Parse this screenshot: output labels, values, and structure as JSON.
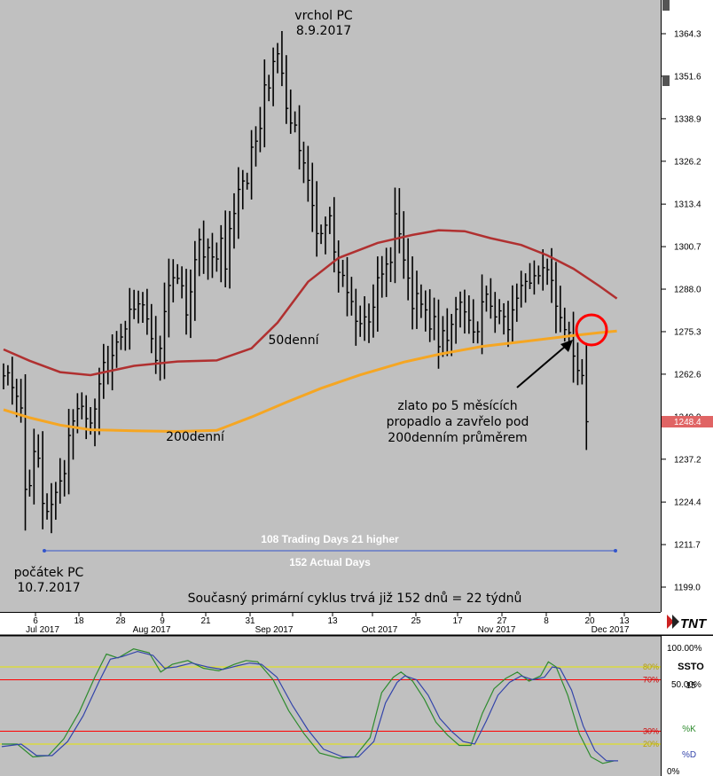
{
  "chart_data": [
    {
      "type": "bar",
      "subtype": "ohlc-price-chart",
      "y_axis_ticks": [
        1199.0,
        1211.7,
        1224.4,
        1237.2,
        1249.9,
        1262.6,
        1275.3,
        1288.0,
        1300.7,
        1313.4,
        1326.2,
        1338.9,
        1351.6,
        1364.3
      ],
      "ylim": [
        1195.0,
        1373.0
      ],
      "last_price": "1248.4",
      "last_price_color": "#e06464",
      "x_day_ticks": [
        "6",
        "18",
        "28",
        "9",
        "21",
        "31",
        "13",
        "25",
        "17",
        "27",
        "8",
        "20",
        "13"
      ],
      "x_month_labels": [
        "Jul 2017",
        "Aug 2017",
        "Sep 2017",
        "Oct 2017",
        "Nov 2017",
        "Dec 2017"
      ],
      "annotations": {
        "peak": [
          "vrchol PC",
          "8.9.2017"
        ],
        "start": [
          "počátek PC",
          "10.7.2017"
        ],
        "ma50_label": "50denní",
        "ma200_label": "200denní",
        "arrow_note": [
          "zlato po 5 měsících",
          "propadlo a zavřelo pod",
          "200denním průměrem"
        ],
        "trading_days": "108 Trading Days 21 higher",
        "actual_days": "152 Actual Days",
        "cycle_note": "Současný primární cyklus trvá již 152 dnů = 22 týdnů"
      },
      "bars_close": [
        1262.1,
        1263.0,
        1258.6,
        1256.0,
        1252.5,
        1228.2,
        1229.3,
        1239.5,
        1237.5,
        1224.0,
        1221.6,
        1223.7,
        1227.3,
        1230.7,
        1232.9,
        1244.3,
        1248.6,
        1252.3,
        1253.0,
        1249.3,
        1248.0,
        1252.2,
        1259.7,
        1266.1,
        1263.6,
        1268.2,
        1272.2,
        1273.7,
        1276.1,
        1282.0,
        1282.0,
        1283.6,
        1283.3,
        1279.1,
        1273.2,
        1266.7,
        1270.3,
        1281.3,
        1289.1,
        1291.4,
        1291.2,
        1289.0,
        1280.3,
        1287.2,
        1296.8,
        1302.8,
        1297.6,
        1300.4,
        1297.6,
        1297.0,
        1303.2,
        1294.0,
        1306.1,
        1310.6,
        1317.8,
        1320.3,
        1319.6,
        1330.4,
        1332.2,
        1336.0,
        1349.0,
        1348.1,
        1356.0,
        1358.3,
        1352.5,
        1342.0,
        1337.6,
        1337.0,
        1329.4,
        1325.7,
        1320.5,
        1313.0,
        1304.6,
        1304.6,
        1307.1,
        1309.9,
        1299.1,
        1293.0,
        1292.1,
        1287.0,
        1284.3,
        1278.4,
        1277.7,
        1279.7,
        1278.2,
        1282.6,
        1291.4,
        1292.5,
        1295.5,
        1296.0,
        1310.5,
        1304.5,
        1296.7,
        1291.3,
        1282.2,
        1286.7,
        1283.5,
        1281.8,
        1276.1,
        1279.8,
        1270.8,
        1275.6,
        1272.7,
        1277.5,
        1282.0,
        1284.1,
        1281.2,
        1278.7,
        1275.2,
        1275.3,
        1284.2,
        1286.5,
        1282.9,
        1279.7,
        1281.5,
        1279.8,
        1275.9,
        1281.8,
        1285.3,
        1289.1,
        1290.3,
        1289.8,
        1292.0,
        1292.0,
        1294.4,
        1293.8,
        1290.6,
        1282.9,
        1279.5,
        1275.9,
        1275.0,
        1268.0,
        1263.7,
        1262.2,
        1248.4
      ],
      "ma50_points": [
        [
          0,
          1270.0
        ],
        [
          6,
          1266.6
        ],
        [
          13,
          1263.2
        ],
        [
          20,
          1262.3
        ],
        [
          30,
          1265.1
        ],
        [
          40,
          1266.4
        ],
        [
          49,
          1266.7
        ],
        [
          57,
          1270.3
        ],
        [
          63,
          1278.0
        ],
        [
          70,
          1290.2
        ],
        [
          77,
          1297.3
        ],
        [
          86,
          1301.8
        ],
        [
          94,
          1304.2
        ],
        [
          100,
          1305.6
        ],
        [
          106,
          1305.3
        ],
        [
          112,
          1303.2
        ],
        [
          119,
          1301.2
        ],
        [
          125,
          1298.1
        ],
        [
          131,
          1294.1
        ],
        [
          137,
          1288.9
        ],
        [
          141,
          1285.2
        ]
      ],
      "ma200_points": [
        [
          0,
          1252.0
        ],
        [
          6,
          1249.6
        ],
        [
          13,
          1247.4
        ],
        [
          20,
          1246.0
        ],
        [
          30,
          1245.7
        ],
        [
          40,
          1245.5
        ],
        [
          49,
          1245.8
        ],
        [
          57,
          1249.8
        ],
        [
          65,
          1254.2
        ],
        [
          73,
          1258.4
        ],
        [
          82,
          1262.4
        ],
        [
          92,
          1266.2
        ],
        [
          100,
          1268.5
        ],
        [
          110,
          1270.9
        ],
        [
          120,
          1272.4
        ],
        [
          130,
          1274.0
        ],
        [
          137,
          1275.0
        ],
        [
          141,
          1275.5
        ]
      ],
      "colors": {
        "ma50": "#b03030",
        "ma200": "#f5a623",
        "bars": "#000000",
        "background": "#c0c0c0",
        "highlight_circle": "#ff0000",
        "range_line": "#3355cc"
      }
    },
    {
      "type": "line",
      "subtype": "stochastic-oscillator",
      "title": "SSTO",
      "parameter": "15",
      "series": [
        {
          "name": "%K",
          "color": "#2e8b2e"
        },
        {
          "name": "%D",
          "color": "#3344aa"
        }
      ],
      "levels": [
        {
          "label": "80%",
          "value": 80,
          "color": "#e6e600"
        },
        {
          "label": "70%",
          "value": 70,
          "color": "#ff0000"
        },
        {
          "label": "30%",
          "value": 30,
          "color": "#ff0000"
        },
        {
          "label": "20%",
          "value": 20,
          "color": "#e6e600"
        }
      ],
      "y_axis_labels": [
        "100.00%",
        "50.00%",
        "0%"
      ],
      "ylim": [
        0,
        100
      ],
      "k_points": [
        [
          0,
          20
        ],
        [
          4,
          20
        ],
        [
          8,
          10
        ],
        [
          12,
          11
        ],
        [
          16,
          24
        ],
        [
          20,
          45
        ],
        [
          24,
          72
        ],
        [
          27,
          90
        ],
        [
          30,
          87
        ],
        [
          34,
          94
        ],
        [
          38,
          91
        ],
        [
          41,
          76
        ],
        [
          44,
          82
        ],
        [
          48,
          85
        ],
        [
          52,
          79
        ],
        [
          56,
          77
        ],
        [
          60,
          82
        ],
        [
          63,
          85
        ],
        [
          66,
          84
        ],
        [
          70,
          70
        ],
        [
          74,
          46
        ],
        [
          78,
          28
        ],
        [
          82,
          13
        ],
        [
          87,
          9
        ],
        [
          91,
          10
        ],
        [
          95,
          25
        ],
        [
          98,
          60
        ],
        [
          101,
          72
        ],
        [
          103,
          76
        ],
        [
          106,
          69
        ],
        [
          109,
          55
        ],
        [
          112,
          37
        ],
        [
          115,
          27
        ],
        [
          118,
          19
        ],
        [
          121,
          19
        ],
        [
          124,
          44
        ],
        [
          127,
          63
        ],
        [
          130,
          71
        ],
        [
          133,
          76
        ],
        [
          136,
          69
        ],
        [
          139,
          73
        ],
        [
          141,
          84
        ],
        [
          143,
          80
        ],
        [
          146,
          58
        ],
        [
          149,
          28
        ],
        [
          152,
          10
        ],
        [
          155,
          5
        ],
        [
          158,
          7
        ]
      ],
      "d_points": [
        [
          0,
          18
        ],
        [
          5,
          20
        ],
        [
          9,
          11
        ],
        [
          13,
          11
        ],
        [
          17,
          22
        ],
        [
          21,
          42
        ],
        [
          25,
          68
        ],
        [
          28,
          86
        ],
        [
          31,
          88
        ],
        [
          35,
          92
        ],
        [
          39,
          89
        ],
        [
          42,
          79
        ],
        [
          45,
          80
        ],
        [
          49,
          83
        ],
        [
          53,
          80
        ],
        [
          57,
          78
        ],
        [
          61,
          81
        ],
        [
          64,
          83
        ],
        [
          67,
          82
        ],
        [
          71,
          72
        ],
        [
          75,
          50
        ],
        [
          79,
          31
        ],
        [
          83,
          16
        ],
        [
          88,
          10
        ],
        [
          92,
          10
        ],
        [
          96,
          22
        ],
        [
          99,
          52
        ],
        [
          102,
          68
        ],
        [
          104,
          73
        ],
        [
          107,
          70
        ],
        [
          110,
          58
        ],
        [
          113,
          40
        ],
        [
          116,
          30
        ],
        [
          119,
          22
        ],
        [
          122,
          20
        ],
        [
          125,
          38
        ],
        [
          128,
          58
        ],
        [
          131,
          68
        ],
        [
          134,
          73
        ],
        [
          137,
          70
        ],
        [
          140,
          72
        ],
        [
          142,
          80
        ],
        [
          144,
          79
        ],
        [
          147,
          62
        ],
        [
          150,
          34
        ],
        [
          153,
          15
        ],
        [
          156,
          7
        ],
        [
          159,
          7
        ]
      ]
    }
  ]
}
